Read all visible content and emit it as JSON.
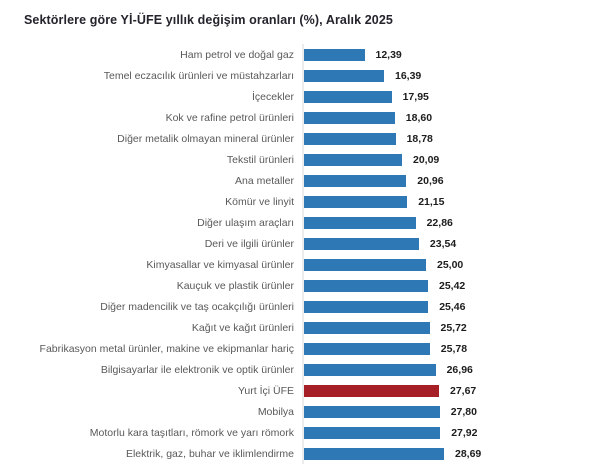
{
  "page": {
    "title": "Sektörlere göre Yİ-ÜFE yıllık değişim oranları (%), Aralık 2025"
  },
  "chart_data": {
    "type": "bar",
    "orientation": "horizontal",
    "title": "Sektörlere göre Yİ-ÜFE yıllık değişim oranları (%), Aralık 2025",
    "categories": [
      "Ham petrol ve doğal gaz",
      "Temel eczacılık ürünleri ve müstahzarları",
      "İçecekler",
      "Kok ve rafine petrol ürünleri",
      "Diğer metalik olmayan mineral ürünler",
      "Tekstil ürünleri",
      "Ana metaller",
      "Kömür ve linyit",
      "Diğer ulaşım araçları",
      "Deri ve ilgili ürünler",
      "Kimyasallar ve kimyasal ürünler",
      "Kauçuk ve plastik ürünler",
      "Diğer madencilik ve taş ocakçılığı ürünleri",
      "Kağıt ve kağıt ürünleri",
      "Fabrikasyon metal ürünler, makine ve ekipmanlar hariç",
      "Bilgisayarlar ile elektronik ve optik ürünler",
      "Yurt İçi ÜFE",
      "Mobilya",
      "Motorlu kara taşıtları, römork ve yarı römork",
      "Elektrik, gaz, buhar ve iklimlendirme"
    ],
    "values": [
      12.39,
      16.39,
      17.95,
      18.6,
      18.78,
      20.09,
      20.96,
      21.15,
      22.86,
      23.54,
      25.0,
      25.42,
      25.46,
      25.72,
      25.78,
      26.96,
      27.67,
      27.8,
      27.92,
      28.69
    ],
    "value_labels": [
      "12,39",
      "16,39",
      "17,95",
      "18,60",
      "18,78",
      "20,09",
      "20,96",
      "21,15",
      "22,86",
      "23,54",
      "25,00",
      "25,42",
      "25,46",
      "25,72",
      "25,78",
      "26,96",
      "27,67",
      "27,80",
      "27,92",
      "28,69"
    ],
    "highlight": {
      "category": "Yurt İçi ÜFE",
      "index": 16,
      "color": "#a61e26"
    },
    "bar_color": "#2e79b5",
    "xlabel": "",
    "ylabel": "",
    "xlim": [
      0,
      30
    ],
    "grid": false,
    "legend": false
  },
  "colors": {
    "bar_blue": "#2e79b5",
    "bar_red": "#a61e26",
    "axis_line": "#ececec",
    "category_text": "#595959",
    "value_text": "#1d1d1d",
    "title_text": "#23242c",
    "background": "#ffffff"
  }
}
